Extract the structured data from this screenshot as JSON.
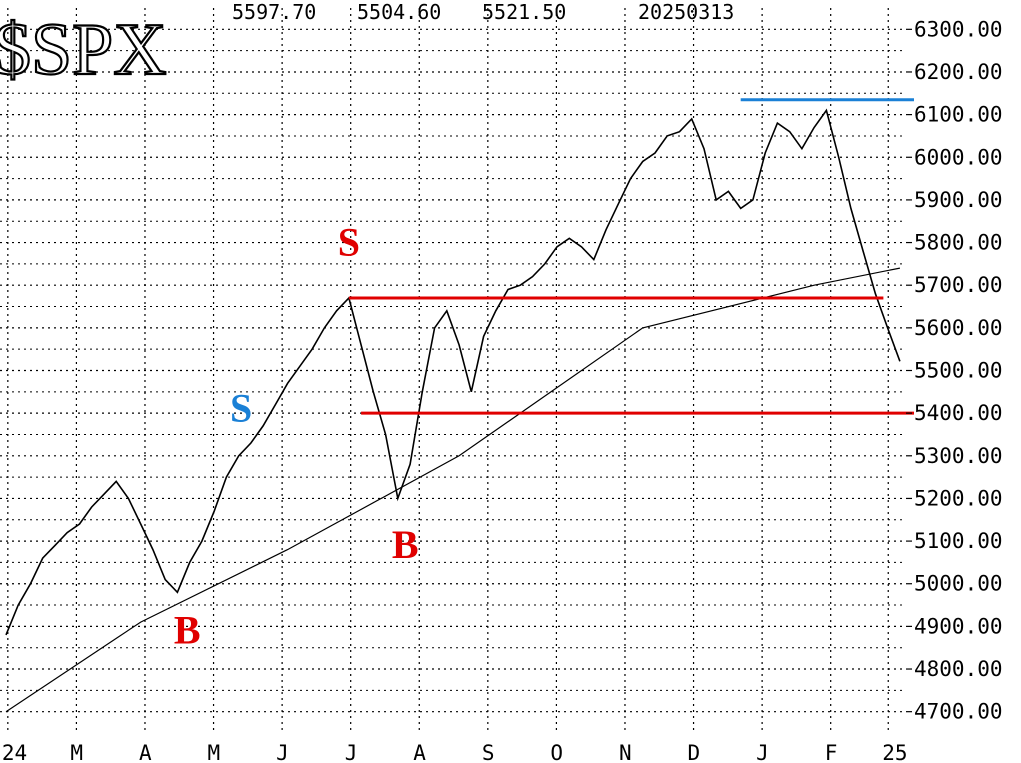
{
  "chart_data": {
    "type": "line",
    "title": "$SPX",
    "quote": {
      "high": "5597.70",
      "low": "5504.60",
      "close": "5521.50",
      "date": "20250313"
    },
    "y_tick_labels": [
      "6300.00",
      "6200.00",
      "6100.00",
      "6000.00",
      "5900.00",
      "5800.00",
      "5700.00",
      "5600.00",
      "5500.00",
      "5400.00",
      "5300.00",
      "5200.00",
      "5100.00",
      "5000.00",
      "4900.00",
      "4800.00",
      "4700.00"
    ],
    "x_tick_labels": [
      "24",
      "M",
      "A",
      "M",
      "J",
      "J",
      "A",
      "S",
      "O",
      "N",
      "D",
      "J",
      "F",
      "25"
    ],
    "ylim": [
      4650,
      6350
    ],
    "grid": true,
    "series": [
      {
        "name": "",
        "color": "#000000",
        "points": [
          [
            0,
            4880
          ],
          [
            1,
            4950
          ],
          [
            2,
            5000
          ],
          [
            3,
            5060
          ],
          [
            4,
            5090
          ],
          [
            5,
            5120
          ],
          [
            6,
            5140
          ],
          [
            7,
            5180
          ],
          [
            8,
            5210
          ],
          [
            9,
            5240
          ],
          [
            10,
            5200
          ],
          [
            11,
            5140
          ],
          [
            12,
            5080
          ],
          [
            13,
            5010
          ],
          [
            14,
            4980
          ],
          [
            15,
            5050
          ],
          [
            16,
            5100
          ],
          [
            17,
            5170
          ],
          [
            18,
            5250
          ],
          [
            19,
            5300
          ],
          [
            20,
            5330
          ],
          [
            21,
            5370
          ],
          [
            22,
            5420
          ],
          [
            23,
            5470
          ],
          [
            24,
            5510
          ],
          [
            25,
            5550
          ],
          [
            26,
            5600
          ],
          [
            27,
            5640
          ],
          [
            28,
            5670
          ],
          [
            29,
            5560
          ],
          [
            30,
            5450
          ],
          [
            31,
            5350
          ],
          [
            32,
            5200
          ],
          [
            33,
            5280
          ],
          [
            34,
            5450
          ],
          [
            35,
            5600
          ],
          [
            36,
            5640
          ],
          [
            37,
            5560
          ],
          [
            38,
            5450
          ],
          [
            39,
            5580
          ],
          [
            40,
            5640
          ],
          [
            41,
            5690
          ],
          [
            42,
            5700
          ],
          [
            43,
            5720
          ],
          [
            44,
            5750
          ],
          [
            45,
            5790
          ],
          [
            46,
            5810
          ],
          [
            47,
            5790
          ],
          [
            48,
            5760
          ],
          [
            49,
            5830
          ],
          [
            50,
            5890
          ],
          [
            51,
            5950
          ],
          [
            52,
            5990
          ],
          [
            53,
            6010
          ],
          [
            54,
            6050
          ],
          [
            55,
            6060
          ],
          [
            56,
            6090
          ],
          [
            57,
            6020
          ],
          [
            58,
            5900
          ],
          [
            59,
            5920
          ],
          [
            60,
            5880
          ],
          [
            61,
            5900
          ],
          [
            62,
            6010
          ],
          [
            63,
            6080
          ],
          [
            64,
            6060
          ],
          [
            65,
            6020
          ],
          [
            66,
            6070
          ],
          [
            67,
            6110
          ],
          [
            68,
            6000
          ],
          [
            69,
            5880
          ],
          [
            70,
            5780
          ],
          [
            71,
            5680
          ],
          [
            72,
            5600
          ],
          [
            73,
            5521.5
          ]
        ]
      },
      {
        "name": "",
        "color": "#000000",
        "points": [
          [
            0,
            4700
          ],
          [
            11,
            4910
          ],
          [
            23,
            5080
          ],
          [
            37,
            5300
          ],
          [
            52,
            5600
          ],
          [
            66,
            5700
          ],
          [
            73,
            5740
          ]
        ]
      }
    ],
    "annotations": [
      {
        "text": "S",
        "color": "#e00000",
        "x": 28,
        "y": 5770
      },
      {
        "text": "S",
        "color": "#1a80d6",
        "x": 19.2,
        "y": 5380
      },
      {
        "text": "B",
        "color": "#e00000",
        "x": 14.8,
        "y": 4860
      },
      {
        "text": "B",
        "color": "#e00000",
        "x": 32.6,
        "y": 5060
      }
    ],
    "horizontal_lines": [
      {
        "y": 5670,
        "color": "#e00000",
        "x_start": 28,
        "x_end": 71
      },
      {
        "y": 5400,
        "color": "#e00000",
        "x_start": 29,
        "x_end": 73.5
      },
      {
        "y": 6135,
        "color": "#1a80d6",
        "x_start": 60,
        "x_end": 73.5
      }
    ]
  }
}
